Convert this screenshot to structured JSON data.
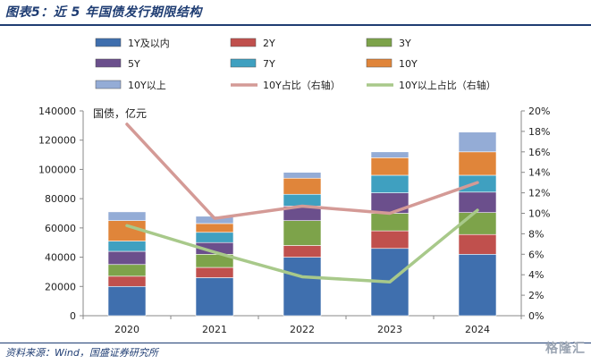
{
  "title": "图表5：近 5 年国债发行期限结构",
  "source": "资料来源：Wind，国盛证券研究所",
  "watermark": "格隆汇",
  "chart_data": {
    "type": "bar",
    "stacked": true,
    "categories": [
      "2020",
      "2021",
      "2022",
      "2023",
      "2024"
    ],
    "left_axis": {
      "unit_label": "国债，亿元",
      "min": 0,
      "max": 140000,
      "step": 20000,
      "ticks": [
        "0",
        "20000",
        "40000",
        "60000",
        "80000",
        "100000",
        "120000",
        "140000"
      ]
    },
    "right_axis": {
      "min": 0,
      "max": 20,
      "step": 2,
      "ticks": [
        "0%",
        "2%",
        "4%",
        "6%",
        "8%",
        "10%",
        "12%",
        "14%",
        "16%",
        "18%",
        "20%"
      ]
    },
    "grid": false,
    "legend_position": "top",
    "series": [
      {
        "name": "1Y及以内",
        "kind": "bar",
        "color": "#3f6fae",
        "values": [
          20000,
          26000,
          40000,
          46000,
          42000
        ]
      },
      {
        "name": "2Y",
        "kind": "bar",
        "color": "#c0504d",
        "values": [
          7000,
          7000,
          8000,
          12000,
          13500
        ]
      },
      {
        "name": "3Y",
        "kind": "bar",
        "color": "#7da34a",
        "values": [
          8000,
          9000,
          17000,
          12000,
          15000
        ]
      },
      {
        "name": "5Y",
        "kind": "bar",
        "color": "#6b4f8c",
        "values": [
          9000,
          8000,
          10000,
          14000,
          14000
        ]
      },
      {
        "name": "7Y",
        "kind": "bar",
        "color": "#3fa0c0",
        "values": [
          7000,
          7000,
          8000,
          12000,
          11500
        ]
      },
      {
        "name": "10Y",
        "kind": "bar",
        "color": "#e0853a",
        "values": [
          14000,
          6000,
          11000,
          12000,
          16000
        ]
      },
      {
        "name": "10Y以上",
        "kind": "bar",
        "color": "#94acd6",
        "values": [
          6000,
          5000,
          4000,
          4000,
          13500
        ]
      },
      {
        "name": "10Y占比（右轴）",
        "kind": "line",
        "color": "#d49a96",
        "values": [
          18.7,
          9.5,
          10.7,
          10.0,
          13.0
        ]
      },
      {
        "name": "10Y以上占比（右轴）",
        "kind": "line",
        "color": "#a8c98a",
        "values": [
          8.8,
          6.2,
          3.8,
          3.3,
          10.3
        ]
      }
    ]
  }
}
